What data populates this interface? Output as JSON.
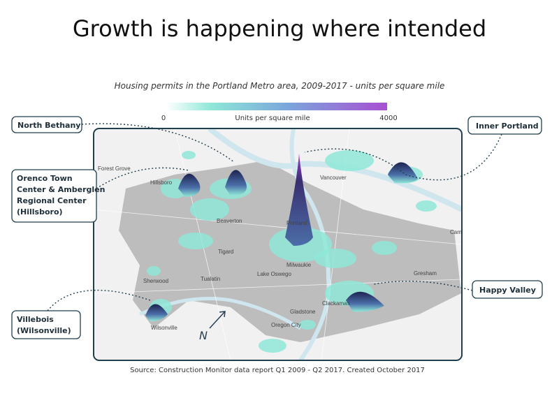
{
  "title": "Growth is happening where intended",
  "map": {
    "subtitle": "Housing permits in the Portland Metro area, 2009-2017 - units per square mile",
    "legend": {
      "min": 0,
      "label": "Units per square mile",
      "max": 4000
    },
    "places": [
      "Forest Grove",
      "Hillsboro",
      "Beaverton",
      "Portland",
      "Vancouver",
      "Tigard",
      "Milwaukie",
      "Lake Oswego",
      "Tualatin",
      "Sherwood",
      "Gresham",
      "Clackamas",
      "Gladstone",
      "Oregon City",
      "Wilsonville",
      "Cama"
    ],
    "north": "N",
    "source": "Source: Construction Monitor data report Q1 2009 - Q2 2017. Created October 2017"
  },
  "callouts": [
    {
      "lines": [
        "North Bethany"
      ]
    },
    {
      "lines": [
        "Orenco Town",
        "Center & Amberglen",
        "Regional Center",
        "(Hillsboro)"
      ]
    },
    {
      "lines": [
        "Inner Portland"
      ]
    },
    {
      "lines": [
        "Happy Valley"
      ]
    },
    {
      "lines": [
        "Villebois",
        "(Wilsonville)"
      ]
    }
  ]
}
